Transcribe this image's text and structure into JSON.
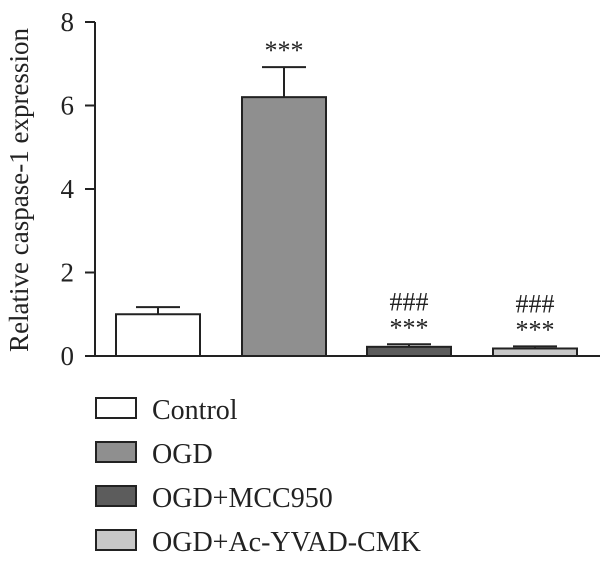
{
  "chart_data": {
    "type": "bar",
    "ylabel": "Relative caspase-1 expression",
    "ylim": [
      0,
      8
    ],
    "yticks": [
      0,
      2,
      4,
      6,
      8
    ],
    "categories": [
      "Control",
      "OGD",
      "OGD+MCC950",
      "OGD+Ac-YVAD-CMK"
    ],
    "values": [
      1.0,
      6.2,
      0.22,
      0.18
    ],
    "errors": [
      0.17,
      0.72,
      0.06,
      0.05
    ],
    "colors": [
      "#ffffff",
      "#8f8f8f",
      "#5c5c5c",
      "#c8c8c8"
    ],
    "significance": [
      [],
      [
        "***"
      ],
      [
        "###",
        "***"
      ],
      [
        "###",
        "***"
      ]
    ],
    "legend": [
      {
        "label": "Control",
        "color": "#ffffff"
      },
      {
        "label": "OGD",
        "color": "#8f8f8f"
      },
      {
        "label": "OGD+MCC950",
        "color": "#5c5c5c"
      },
      {
        "label": "OGD+Ac-YVAD-CMK",
        "color": "#c8c8c8"
      }
    ],
    "legend_position": "below"
  }
}
